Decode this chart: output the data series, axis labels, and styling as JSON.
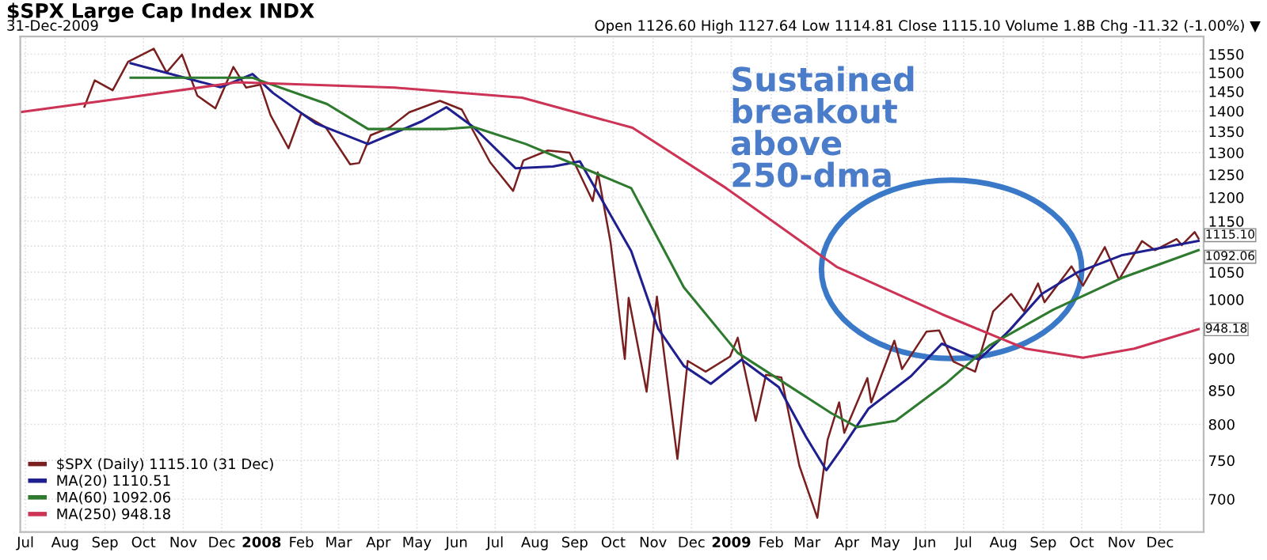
{
  "chart_data": {
    "type": "line",
    "title": "$SPX Large Cap Index INDX",
    "subtitle": "31-Dec-2009",
    "annotations": [
      "Open 1126.60 High 1127.64 Low 1114.81 Close 1115.10 Volume 1.8B Chg -11.32 (-1.00%) ▼",
      "Sustained\nbreakout\nabove\n250-dma",
      {
        "text": "1115.10",
        "x": "2009-12-31",
        "y": 1115.1
      },
      {
        "text": "1092.06",
        "x": "2009-12-31",
        "y": 1092.06
      },
      {
        "text": "948.18",
        "x": "2009-12-31",
        "y": 948.18
      }
    ],
    "series": [
      {
        "name": "$SPX (Daily) 1115.10 (31 Dec)",
        "color": "#7a1f1f",
        "x": [
          "2007-08-16",
          "2007-08-24",
          "2007-09-07",
          "2007-09-19",
          "2007-10-09",
          "2007-10-19",
          "2007-10-31",
          "2007-11-12",
          "2007-11-26",
          "2007-12-10",
          "2007-12-20",
          "2007-12-31",
          "2008-01-08",
          "2008-01-22",
          "2008-02-01",
          "2008-02-20",
          "2008-03-10",
          "2008-03-17",
          "2008-03-26",
          "2008-04-10",
          "2008-04-25",
          "2008-05-19",
          "2008-06-05",
          "2008-06-27",
          "2008-07-15",
          "2008-07-23",
          "2008-08-11",
          "2008-08-28",
          "2008-09-15",
          "2008-09-19",
          "2008-09-29",
          "2008-10-10",
          "2008-10-13",
          "2008-10-27",
          "2008-11-04",
          "2008-11-20",
          "2008-11-28",
          "2008-12-12",
          "2008-12-31",
          "2009-01-06",
          "2009-01-20",
          "2009-01-28",
          "2009-02-09",
          "2009-02-23",
          "2009-03-09",
          "2009-03-17",
          "2009-03-26",
          "2009-03-30",
          "2009-04-17",
          "2009-04-20",
          "2009-05-08",
          "2009-05-14",
          "2009-06-02",
          "2009-06-12",
          "2009-06-23",
          "2009-07-10",
          "2009-07-24",
          "2009-08-07",
          "2009-08-17",
          "2009-08-28",
          "2009-09-02",
          "2009-09-23",
          "2009-10-02",
          "2009-10-19",
          "2009-10-30",
          "2009-11-17",
          "2009-11-27",
          "2009-12-14",
          "2009-12-18",
          "2009-12-28",
          "2009-12-31"
        ],
        "values": [
          1411,
          1479,
          1453,
          1529,
          1565,
          1500,
          1549,
          1439,
          1407,
          1515,
          1460,
          1468,
          1390,
          1310,
          1395,
          1360,
          1273,
          1276,
          1341,
          1360,
          1397,
          1426,
          1404,
          1278,
          1214,
          1282,
          1305,
          1300,
          1192,
          1255,
          1106,
          899,
          1003,
          848,
          1005,
          752,
          896,
          879,
          903,
          934,
          805,
          874,
          870,
          743,
          677,
          778,
          832,
          788,
          869,
          832,
          929,
          883,
          944,
          946,
          895,
          879,
          979,
          1010,
          979,
          1029,
          995,
          1061,
          1025,
          1098,
          1036,
          1110,
          1092,
          1114,
          1102,
          1128,
          1115
        ]
      },
      {
        "name": "MA(20) 1110.51",
        "color": "#1f1f8f",
        "x": [
          "2007-09-21",
          "2007-11-30",
          "2007-12-25",
          "2008-01-10",
          "2008-02-12",
          "2008-03-24",
          "2008-05-05",
          "2008-05-24",
          "2008-06-14",
          "2008-07-17",
          "2008-08-15",
          "2008-09-05",
          "2008-10-15",
          "2008-11-05",
          "2008-11-25",
          "2008-12-16",
          "2009-01-09",
          "2009-02-07",
          "2009-02-28",
          "2009-03-16",
          "2009-03-28",
          "2009-04-18",
          "2009-05-21",
          "2009-06-14",
          "2009-07-13",
          "2009-08-06",
          "2009-08-31",
          "2009-09-28",
          "2009-11-01",
          "2009-12-31"
        ],
        "values": [
          1525,
          1461,
          1496,
          1446,
          1370,
          1320,
          1375,
          1410,
          1361,
          1264,
          1268,
          1280,
          1090,
          949,
          888,
          860,
          898,
          855,
          783,
          737,
          766,
          823,
          872,
          924,
          898,
          947,
          1010,
          1050,
          1082,
          1110.51
        ]
      },
      {
        "name": "MA(60) 1092.06",
        "color": "#2e7a2e",
        "x": [
          "2007-09-21",
          "2007-12-25",
          "2008-02-21",
          "2008-03-24",
          "2008-05-24",
          "2008-06-14",
          "2008-07-25",
          "2008-10-15",
          "2008-11-25",
          "2009-01-06",
          "2009-03-20",
          "2009-04-09",
          "2009-05-09",
          "2009-06-18",
          "2009-07-21",
          "2009-09-09",
          "2009-11-01",
          "2009-12-31"
        ],
        "values": [
          1486,
          1486,
          1418,
          1356,
          1356,
          1361,
          1320,
          1220,
          1022,
          909,
          816,
          796,
          805,
          862,
          921,
          982,
          1039,
          1092.06
        ]
      },
      {
        "name": "MA(250) 948.18",
        "color": "#cc3355",
        "x": [
          "2007-06-28",
          "2007-09-18",
          "2007-12-13",
          "2008-04-14",
          "2008-07-22",
          "2008-10-16",
          "2008-12-28",
          "2009-03-24",
          "2009-06-14",
          "2009-08-18",
          "2009-10-02",
          "2009-11-11",
          "2009-12-31"
        ],
        "values": [
          1398,
          1434,
          1474,
          1460,
          1434,
          1359,
          1220,
          1060,
          974,
          916,
          901,
          916,
          948.18
        ]
      }
    ],
    "log": "y",
    "ylim": [
      660,
      1600
    ],
    "yticks": [
      700,
      750,
      800,
      850,
      900,
      {
        "value": 950,
        "label": null
      },
      1000,
      1050,
      {
        "value": 1100,
        "label": null
      },
      1150,
      1200,
      1250,
      1300,
      1350,
      1400,
      1450,
      1500,
      1550
    ],
    "xlim": [
      "2007-06-27",
      "2010-01-04"
    ],
    "xticks": [
      {
        "value": "2007-07-01",
        "label": "Jul"
      },
      {
        "value": "2007-08-01",
        "label": "Aug"
      },
      {
        "value": "2007-09-01",
        "label": "Sep"
      },
      {
        "value": "2007-10-01",
        "label": "Oct"
      },
      {
        "value": "2007-11-01",
        "label": "Nov"
      },
      {
        "value": "2007-12-01",
        "label": "Dec"
      },
      {
        "value": "2008-01-01",
        "label": "2008"
      },
      {
        "value": "2008-02-01",
        "label": "Feb"
      },
      {
        "value": "2008-03-01",
        "label": "Mar"
      },
      {
        "value": "2008-04-01",
        "label": "Apr"
      },
      {
        "value": "2008-05-01",
        "label": "May"
      },
      {
        "value": "2008-06-01",
        "label": "Jun"
      },
      {
        "value": "2008-07-01",
        "label": "Jul"
      },
      {
        "value": "2008-08-01",
        "label": "Aug"
      },
      {
        "value": "2008-09-01",
        "label": "Sep"
      },
      {
        "value": "2008-10-01",
        "label": "Oct"
      },
      {
        "value": "2008-11-01",
        "label": "Nov"
      },
      {
        "value": "2008-12-01",
        "label": "Dec"
      },
      {
        "value": "2009-01-01",
        "label": "2009"
      },
      {
        "value": "2009-02-01",
        "label": "Feb"
      },
      {
        "value": "2009-03-01",
        "label": "Mar"
      },
      {
        "value": "2009-04-01",
        "label": "Apr"
      },
      {
        "value": "2009-05-01",
        "label": "May"
      },
      {
        "value": "2009-06-01",
        "label": "Jun"
      },
      {
        "value": "2009-07-01",
        "label": "Jul"
      },
      {
        "value": "2009-08-01",
        "label": "Aug"
      },
      {
        "value": "2009-09-01",
        "label": "Sep"
      },
      {
        "value": "2009-10-01",
        "label": "Oct"
      },
      {
        "value": "2009-11-01",
        "label": "Nov"
      },
      {
        "value": "2009-12-01",
        "label": "Dec"
      }
    ],
    "grid": true,
    "legend": "bottom left",
    "line_style": "solid",
    "marker": "none"
  }
}
